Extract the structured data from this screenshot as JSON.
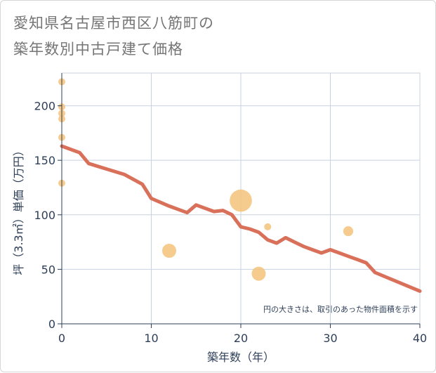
{
  "title_lines": [
    "愛知県名古屋市西区八筋町の",
    "築年数別中古戸建て価格"
  ],
  "chart_data": {
    "type": "scatter+line",
    "title": "愛知県名古屋市西区八筋町の築年数別中古戸建て価格",
    "xlabel": "築年数（年）",
    "ylabel": "坪（3.3㎡）単価（万円）",
    "xlim": [
      0,
      40
    ],
    "ylim": [
      0,
      230
    ],
    "xticks": [
      0,
      10,
      20,
      30,
      40
    ],
    "yticks": [
      0,
      50,
      100,
      150,
      200
    ],
    "grid": true,
    "note": "円の大きさは、取引のあった物件面積を示す",
    "colors": {
      "line": "#d9705a",
      "bubble": "#f4c27a",
      "grid": "#c8d3e0",
      "text": "#2e3f58"
    },
    "scatter": [
      {
        "x": 0,
        "y": 222,
        "size": 1
      },
      {
        "x": 0,
        "y": 199,
        "size": 1
      },
      {
        "x": 0,
        "y": 193,
        "size": 1
      },
      {
        "x": 0,
        "y": 188,
        "size": 1
      },
      {
        "x": 0,
        "y": 171,
        "size": 1
      },
      {
        "x": 0,
        "y": 129,
        "size": 1
      },
      {
        "x": 12,
        "y": 67,
        "size": 4
      },
      {
        "x": 20,
        "y": 113,
        "size": 10
      },
      {
        "x": 22,
        "y": 46,
        "size": 4
      },
      {
        "x": 23,
        "y": 89,
        "size": 1
      },
      {
        "x": 32,
        "y": 85,
        "size": 2
      }
    ],
    "line": {
      "x": [
        0,
        2,
        3,
        5,
        7,
        9,
        10,
        12,
        14,
        15,
        17,
        18,
        19,
        20,
        21,
        22,
        23,
        24,
        25,
        26,
        27,
        28,
        29,
        30,
        31,
        32,
        33,
        34,
        35,
        40
      ],
      "y": [
        163,
        157,
        147,
        142,
        137,
        128,
        115,
        108,
        102,
        109,
        103,
        104,
        100,
        89,
        87,
        84,
        77,
        74,
        79,
        75,
        71,
        68,
        65,
        68,
        65,
        62,
        59,
        56,
        47,
        30
      ]
    }
  }
}
